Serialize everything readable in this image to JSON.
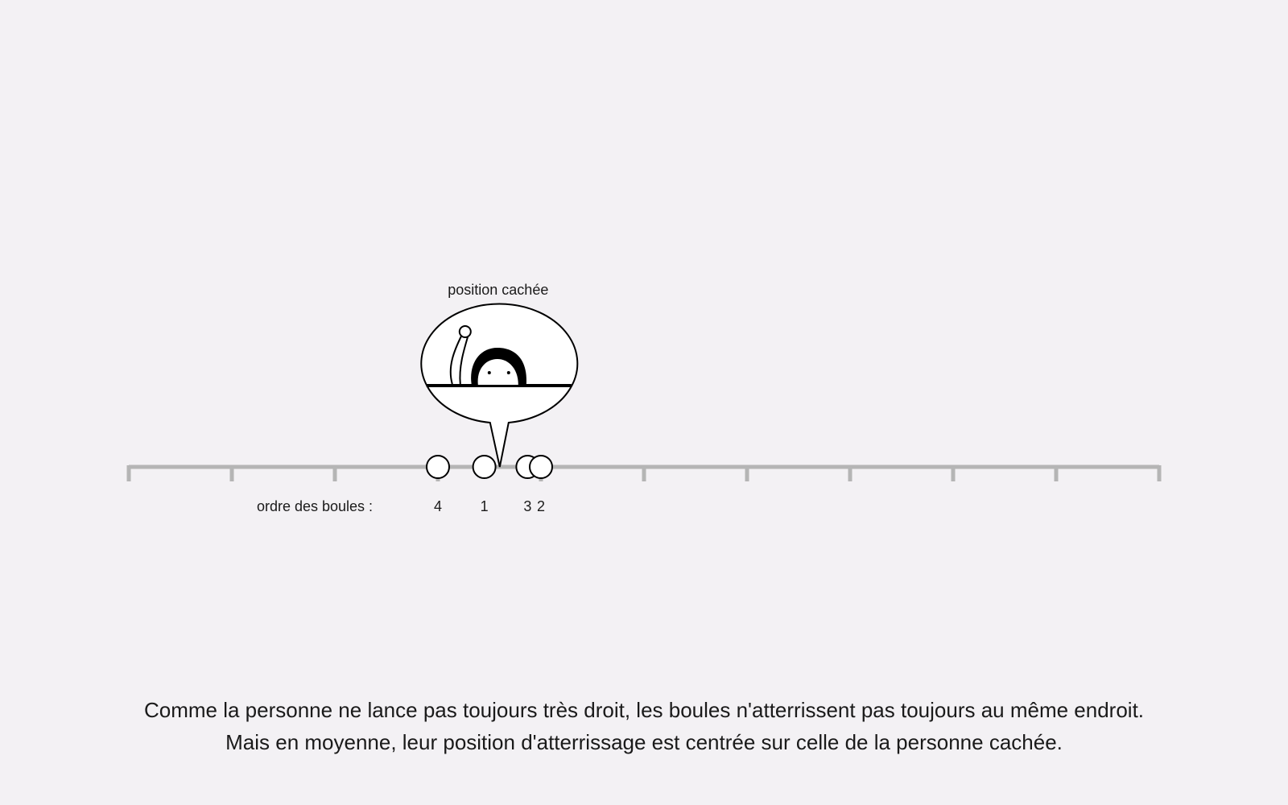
{
  "scene": {
    "hidden_label": "position cachée",
    "order_label": "ordre des boules :",
    "balls": [
      {
        "order": "4",
        "value": 3.0
      },
      {
        "order": "1",
        "value": 3.45
      },
      {
        "order": "3",
        "value": 3.87
      },
      {
        "order": "2",
        "value": 4.0
      }
    ],
    "hidden_position": 3.6,
    "axis": {
      "min": 0,
      "max": 10,
      "ticks": 11
    },
    "colors": {
      "axis": "#b5b5b5",
      "ink": "#000000",
      "fill": "#ffffff",
      "background": "#f3f1f4"
    }
  },
  "caption": {
    "line1": "Comme la personne ne lance pas toujours très droit, les boules n'atterrissent pas toujours au même endroit.",
    "line2": "Mais en moyenne, leur position d'atterrissage est centrée sur celle de la personne cachée."
  }
}
